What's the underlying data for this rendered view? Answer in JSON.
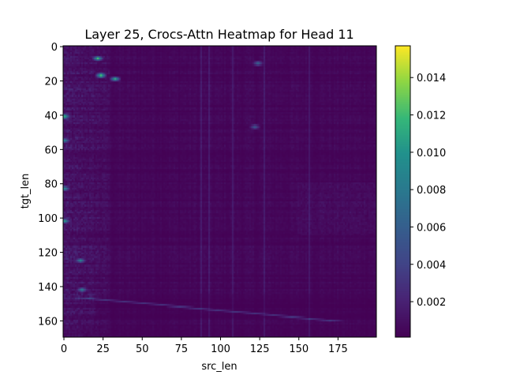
{
  "chart_data": {
    "type": "heatmap",
    "title": "Layer 25, Crocs-Attn Heatmap for Head 11",
    "xlabel": "src_len",
    "ylabel": "tgt_len",
    "x_range": [
      0,
      199
    ],
    "y_range": [
      0,
      169
    ],
    "x_ticks": [
      0,
      25,
      50,
      75,
      100,
      125,
      150,
      175
    ],
    "y_ticks": [
      0,
      20,
      40,
      60,
      80,
      100,
      120,
      140,
      160
    ],
    "colormap": "viridis",
    "colorbar": {
      "range": [
        0.0001,
        0.0157
      ],
      "ticks": [
        0.002,
        0.004,
        0.006,
        0.008,
        0.01,
        0.012,
        0.014
      ],
      "tick_labels": [
        "0.002",
        "0.004",
        "0.006",
        "0.008",
        "0.010",
        "0.012",
        "0.014"
      ]
    },
    "grid": false,
    "n_src": 200,
    "n_tgt": 170,
    "features": {
      "background_level": 0.0004,
      "left_columns_strong": {
        "src_max": 30,
        "level": 0.004
      },
      "hot_spots": [
        {
          "tgt": 7,
          "src": 22,
          "value": 0.0125
        },
        {
          "tgt": 17,
          "src": 24,
          "value": 0.012
        },
        {
          "tgt": 19,
          "src": 33,
          "value": 0.0115
        },
        {
          "tgt": 41,
          "src": 1,
          "value": 0.011
        },
        {
          "tgt": 55,
          "src": 1,
          "value": 0.009
        },
        {
          "tgt": 83,
          "src": 1,
          "value": 0.0095
        },
        {
          "tgt": 102,
          "src": 1,
          "value": 0.0105
        },
        {
          "tgt": 125,
          "src": 11,
          "value": 0.009
        },
        {
          "tgt": 142,
          "src": 12,
          "value": 0.0085
        },
        {
          "tgt": 10,
          "src": 124,
          "value": 0.0065
        },
        {
          "tgt": 47,
          "src": 122,
          "value": 0.0055
        }
      ],
      "diagonal_band": {
        "tgt_start": 147,
        "src_start": 15,
        "tgt_end": 160,
        "src_end": 170,
        "level": 0.003
      },
      "dark_band": {
        "tgt_from": 145,
        "tgt_to": 158,
        "level": 0.0003
      },
      "light_columns": [
        88,
        93,
        108,
        128,
        157
      ],
      "right_region": {
        "src_from": 150,
        "tgt_from": 80,
        "tgt_to": 110,
        "level": 0.0018
      }
    }
  }
}
